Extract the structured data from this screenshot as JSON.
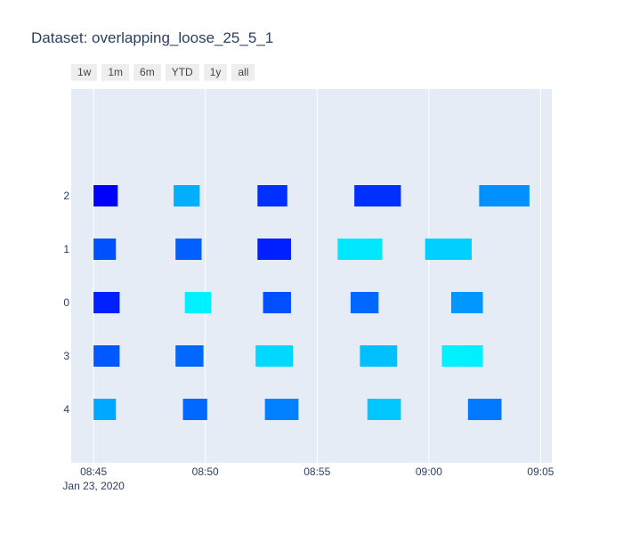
{
  "title": "Dataset: overlapping_loose_25_5_1",
  "range_selector": {
    "buttons": [
      "1w",
      "1m",
      "6m",
      "YTD",
      "1y",
      "all"
    ]
  },
  "colors": {
    "plot_background": "#e5ecf6",
    "grid": "#ffffff",
    "text": "#2a3f5f"
  },
  "chart_data": {
    "type": "timeline",
    "title": "Dataset: overlapping_loose_25_5_1",
    "x_axis": {
      "type": "date",
      "range": [
        "2020-01-23 08:44:00",
        "2020-01-23 09:05:30"
      ],
      "ticks": [
        {
          "t": "2020-01-23 08:45:00",
          "label": "08:45",
          "sublabel": "Jan 23, 2020"
        },
        {
          "t": "2020-01-23 08:50:00",
          "label": "08:50"
        },
        {
          "t": "2020-01-23 08:55:00",
          "label": "08:55"
        },
        {
          "t": "2020-01-23 09:00:00",
          "label": "09:00"
        },
        {
          "t": "2020-01-23 09:05:00",
          "label": "09:05"
        }
      ]
    },
    "y_axis": {
      "type": "category",
      "categories_top_to_bottom": [
        "2",
        "1",
        "0",
        "3",
        "4"
      ]
    },
    "grid": true,
    "tasks": [
      {
        "row": "2",
        "start": "2020-01-23 08:45:00",
        "end": "2020-01-23 08:46:05",
        "color": "#0000ff"
      },
      {
        "row": "2",
        "start": "2020-01-23 08:48:35",
        "end": "2020-01-23 08:49:45",
        "color": "#00b0ff"
      },
      {
        "row": "2",
        "start": "2020-01-23 08:52:20",
        "end": "2020-01-23 08:53:40",
        "color": "#0030ff"
      },
      {
        "row": "2",
        "start": "2020-01-23 08:56:40",
        "end": "2020-01-23 08:58:45",
        "color": "#0030ff"
      },
      {
        "row": "2",
        "start": "2020-01-23 09:02:15",
        "end": "2020-01-23 09:04:30",
        "color": "#0090ff"
      },
      {
        "row": "1",
        "start": "2020-01-23 08:45:00",
        "end": "2020-01-23 08:46:00",
        "color": "#0050ff"
      },
      {
        "row": "1",
        "start": "2020-01-23 08:48:40",
        "end": "2020-01-23 08:49:50",
        "color": "#0060ff"
      },
      {
        "row": "1",
        "start": "2020-01-23 08:52:20",
        "end": "2020-01-23 08:53:50",
        "color": "#0020ff"
      },
      {
        "row": "1",
        "start": "2020-01-23 08:55:55",
        "end": "2020-01-23 08:57:55",
        "color": "#00e8ff"
      },
      {
        "row": "1",
        "start": "2020-01-23 08:59:50",
        "end": "2020-01-23 09:01:55",
        "color": "#00d0ff"
      },
      {
        "row": "0",
        "start": "2020-01-23 08:45:00",
        "end": "2020-01-23 08:46:10",
        "color": "#0020ff"
      },
      {
        "row": "0",
        "start": "2020-01-23 08:49:05",
        "end": "2020-01-23 08:50:15",
        "color": "#00f0ff"
      },
      {
        "row": "0",
        "start": "2020-01-23 08:52:35",
        "end": "2020-01-23 08:53:50",
        "color": "#0050ff"
      },
      {
        "row": "0",
        "start": "2020-01-23 08:56:30",
        "end": "2020-01-23 08:57:45",
        "color": "#0068ff"
      },
      {
        "row": "0",
        "start": "2020-01-23 09:01:00",
        "end": "2020-01-23 09:02:25",
        "color": "#0098ff"
      },
      {
        "row": "3",
        "start": "2020-01-23 08:45:00",
        "end": "2020-01-23 08:46:10",
        "color": "#0058ff"
      },
      {
        "row": "3",
        "start": "2020-01-23 08:48:40",
        "end": "2020-01-23 08:49:55",
        "color": "#0068ff"
      },
      {
        "row": "3",
        "start": "2020-01-23 08:52:15",
        "end": "2020-01-23 08:53:55",
        "color": "#00d8ff"
      },
      {
        "row": "3",
        "start": "2020-01-23 08:56:55",
        "end": "2020-01-23 08:58:35",
        "color": "#00c0ff"
      },
      {
        "row": "3",
        "start": "2020-01-23 09:00:35",
        "end": "2020-01-23 09:02:25",
        "color": "#00f0ff"
      },
      {
        "row": "4",
        "start": "2020-01-23 08:45:00",
        "end": "2020-01-23 08:46:00",
        "color": "#00a8ff"
      },
      {
        "row": "4",
        "start": "2020-01-23 08:49:00",
        "end": "2020-01-23 08:50:05",
        "color": "#0068ff"
      },
      {
        "row": "4",
        "start": "2020-01-23 08:52:40",
        "end": "2020-01-23 08:54:10",
        "color": "#0080ff"
      },
      {
        "row": "4",
        "start": "2020-01-23 08:57:15",
        "end": "2020-01-23 08:58:45",
        "color": "#00c8ff"
      },
      {
        "row": "4",
        "start": "2020-01-23 09:01:45",
        "end": "2020-01-23 09:03:15",
        "color": "#0078ff"
      }
    ]
  }
}
